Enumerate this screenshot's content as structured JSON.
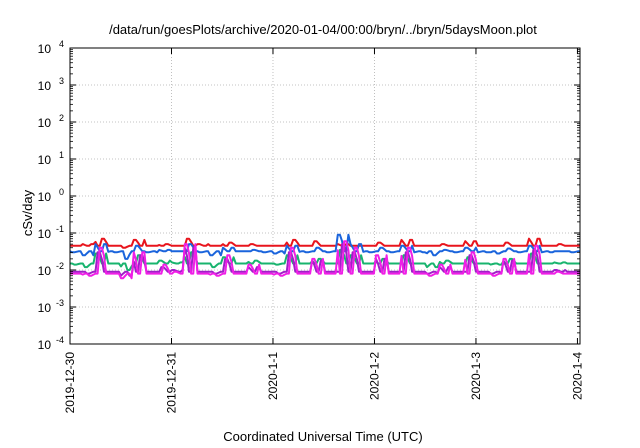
{
  "chart_data": {
    "type": "line",
    "title": "/data/run/goesPlots/archive/2020-01-04/00:00/bryn/../bryn/5daysMoon.plot",
    "xlabel": "Coordinated Universal Time (UTC)",
    "ylabel": "cSv/day",
    "yscale": "log",
    "ylim": [
      0.0001,
      10000
    ],
    "y_ticks": [
      {
        "base": "10",
        "exp": "-4",
        "value": 0.0001
      },
      {
        "base": "10",
        "exp": "-3",
        "value": 0.001
      },
      {
        "base": "10",
        "exp": "-2",
        "value": 0.01
      },
      {
        "base": "10",
        "exp": "-1",
        "value": 0.1
      },
      {
        "base": "10",
        "exp": "0",
        "value": 1
      },
      {
        "base": "10",
        "exp": "1",
        "value": 10
      },
      {
        "base": "10",
        "exp": "2",
        "value": 100
      },
      {
        "base": "10",
        "exp": "3",
        "value": 1000
      },
      {
        "base": "10",
        "exp": "4",
        "value": 10000
      }
    ],
    "x_ticks": [
      "2019-12-30",
      "2019-12-31",
      "2020-1-1",
      "2020-1-2",
      "2020-1-3",
      "2020-1-4"
    ],
    "xlim": [
      "2019-12-30",
      "2020-01-04"
    ],
    "grid": true,
    "legend": "none",
    "series": [
      {
        "color": "#e8141c",
        "base": 0.045,
        "low": 0.04,
        "high": 0.07,
        "values": [
          0.045,
          0.05,
          0.07,
          0.045,
          0.04,
          0.065,
          0.045,
          0.05,
          0.045,
          0.07,
          0.05,
          0.045,
          0.055,
          0.045,
          0.05,
          0.045,
          0.045,
          0.065,
          0.045,
          0.06,
          0.045,
          0.05,
          0.045,
          0.045,
          0.055,
          0.045,
          0.065,
          0.045,
          0.045,
          0.05,
          0.045,
          0.06,
          0.045,
          0.045,
          0.055,
          0.045,
          0.07,
          0.045,
          0.05,
          0.045
        ]
      },
      {
        "color": "#1a64dc",
        "base": 0.032,
        "low": 0.012,
        "high": 0.09,
        "values": [
          0.03,
          0.025,
          0.05,
          0.03,
          0.02,
          0.045,
          0.03,
          0.035,
          0.032,
          0.05,
          0.03,
          0.025,
          0.04,
          0.032,
          0.035,
          0.03,
          0.028,
          0.045,
          0.03,
          0.04,
          0.03,
          0.09,
          0.05,
          0.03,
          0.04,
          0.03,
          0.045,
          0.03,
          0.025,
          0.035,
          0.03,
          0.04,
          0.03,
          0.028,
          0.038,
          0.03,
          0.045,
          0.03,
          0.032,
          0.03
        ]
      },
      {
        "color": "#18b46e",
        "base": 0.015,
        "low": 0.009,
        "high": 0.035,
        "values": [
          0.014,
          0.012,
          0.028,
          0.015,
          0.01,
          0.025,
          0.015,
          0.018,
          0.016,
          0.03,
          0.015,
          0.012,
          0.022,
          0.015,
          0.018,
          0.015,
          0.014,
          0.025,
          0.015,
          0.02,
          0.015,
          0.035,
          0.025,
          0.015,
          0.02,
          0.015,
          0.025,
          0.015,
          0.012,
          0.018,
          0.015,
          0.022,
          0.015,
          0.014,
          0.02,
          0.015,
          0.028,
          0.015,
          0.016,
          0.015
        ]
      },
      {
        "color": "#a01ec8",
        "base": 0.009,
        "low": 0.006,
        "high": 0.05,
        "values": [
          0.009,
          0.008,
          0.03,
          0.009,
          0.007,
          0.025,
          0.009,
          0.012,
          0.01,
          0.04,
          0.009,
          0.008,
          0.02,
          0.009,
          0.012,
          0.009,
          0.008,
          0.03,
          0.009,
          0.018,
          0.009,
          0.05,
          0.03,
          0.009,
          0.02,
          0.009,
          0.03,
          0.009,
          0.008,
          0.012,
          0.009,
          0.025,
          0.009,
          0.008,
          0.018,
          0.009,
          0.035,
          0.009,
          0.01,
          0.009
        ]
      },
      {
        "color": "#f01ee6",
        "base": 0.008,
        "low": 0.006,
        "high": 0.06,
        "values": [
          0.008,
          0.007,
          0.04,
          0.008,
          0.006,
          0.03,
          0.008,
          0.014,
          0.009,
          0.05,
          0.008,
          0.007,
          0.025,
          0.008,
          0.014,
          0.008,
          0.007,
          0.04,
          0.008,
          0.02,
          0.008,
          0.06,
          0.04,
          0.008,
          0.025,
          0.008,
          0.04,
          0.008,
          0.007,
          0.014,
          0.008,
          0.03,
          0.008,
          0.007,
          0.02,
          0.008,
          0.045,
          0.008,
          0.009,
          0.008
        ]
      }
    ]
  }
}
